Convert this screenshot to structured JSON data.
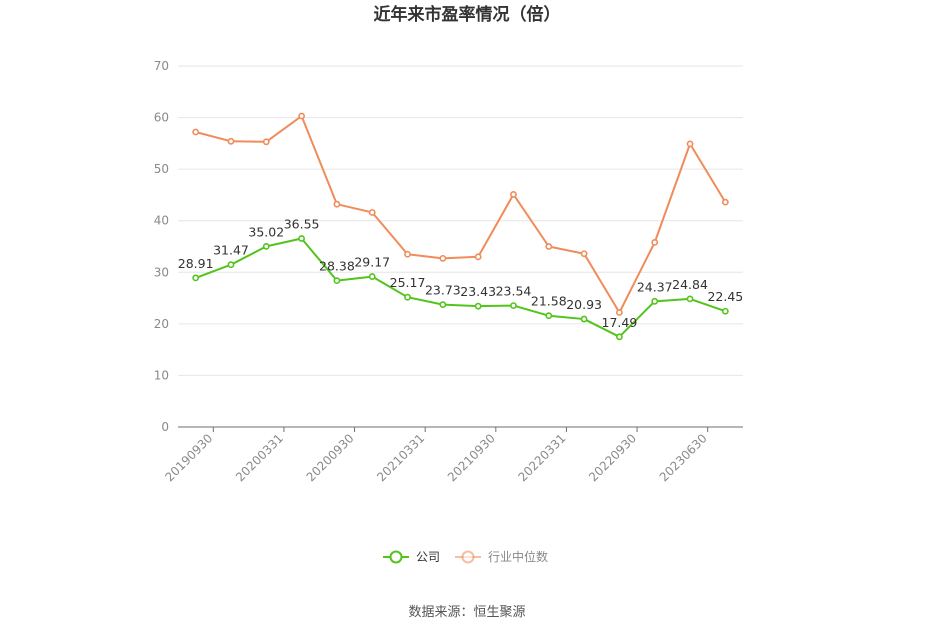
{
  "chart_data": {
    "type": "line",
    "title": "近年来市盈率情况（倍）",
    "ylim": [
      0,
      70
    ],
    "yticks": [
      0,
      10,
      20,
      30,
      40,
      50,
      60,
      70
    ],
    "x_tick_labels": [
      "20190930",
      "20200331",
      "20200930",
      "20210331",
      "20210930",
      "20220331",
      "20220930",
      "20230630"
    ],
    "x_tick_indices": [
      0,
      2,
      4,
      6,
      8,
      10,
      12,
      14
    ],
    "categories_count": 16,
    "series": [
      {
        "name": "公司",
        "color": "#52c41a",
        "values": [
          28.91,
          31.47,
          35.02,
          36.55,
          28.38,
          29.17,
          25.17,
          23.73,
          23.43,
          23.54,
          21.58,
          20.93,
          17.49,
          24.37,
          24.84,
          22.45
        ],
        "labels": [
          "28.91",
          "31.47",
          "35.02",
          "36.55",
          "28.38",
          "29.17",
          "25.17",
          "23.73",
          "23.43",
          "23.54",
          "21.58",
          "20.93",
          "17.49",
          "24.37",
          "24.84",
          "22.45"
        ]
      },
      {
        "name": "行业中位数",
        "color": "#f08c5a",
        "values": [
          57.2,
          55.4,
          55.3,
          60.3,
          43.2,
          41.6,
          33.5,
          32.7,
          33.0,
          45.1,
          35.0,
          33.6,
          22.2,
          35.8,
          54.9,
          43.6
        ]
      }
    ],
    "grid": true,
    "legend_position": "bottom"
  },
  "source_text": "数据来源：恒生聚源"
}
